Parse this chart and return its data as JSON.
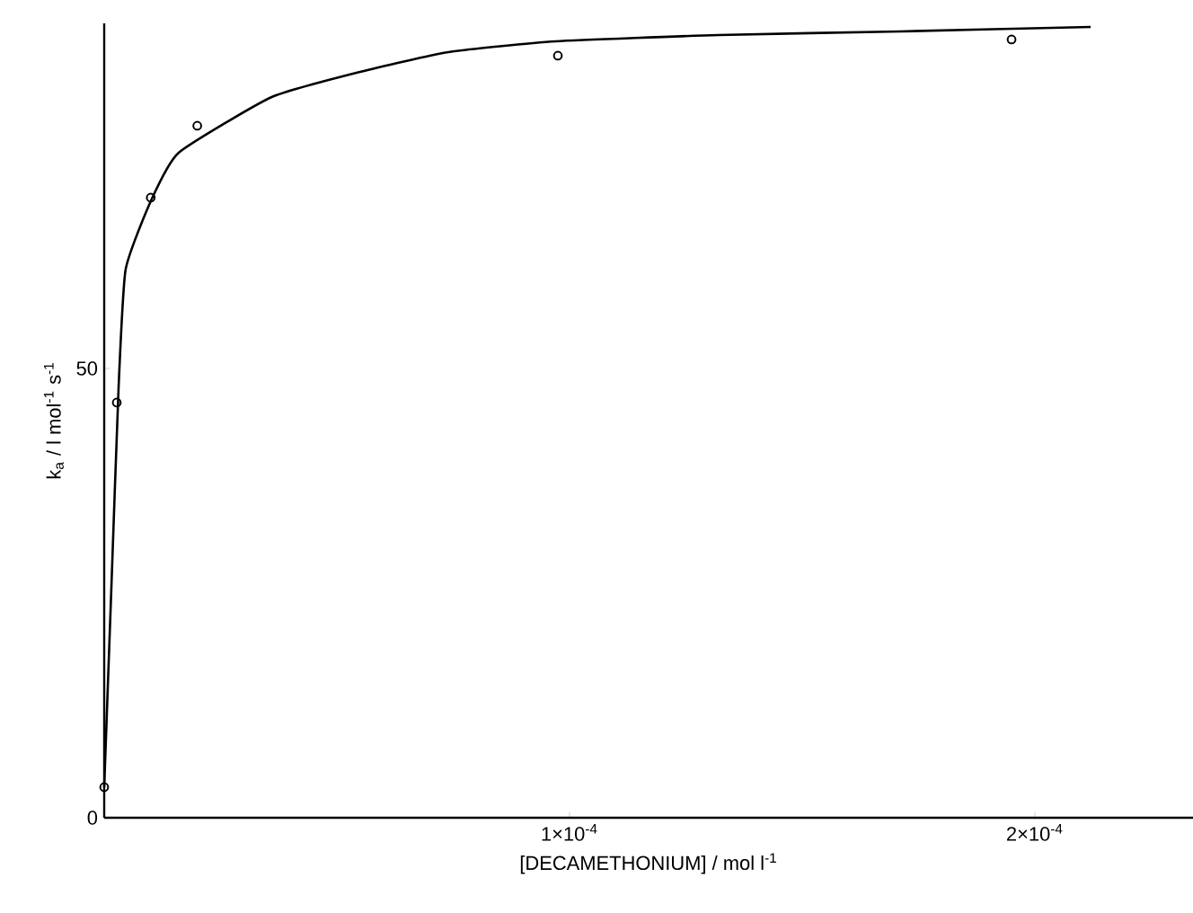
{
  "chart_data": {
    "type": "scatter",
    "xlabel": "[DECAMETHONIUM] / mol l$^{-1}$",
    "ylabel": "k$_{a}$ / l mol$^{-1}$ s$^{-1}$",
    "xlim": [
      0,
      0.000234
    ],
    "ylim": [
      0,
      88.4
    ],
    "xticks": [
      {
        "value": 0,
        "label": null
      },
      {
        "value": 0.0001,
        "label": "1×10$^{-4}$"
      },
      {
        "value": 0.0002,
        "label": "2×10$^{-4}$"
      }
    ],
    "yticks": [
      0,
      50
    ],
    "grid": false,
    "marker": "circle",
    "series": [
      {
        "type": "line",
        "color": "#000000",
        "marker": "none",
        "line_style": "solid",
        "x": [
          0,
          1.5e-06,
          3.1e-06,
          4.6e-06,
          1e-05,
          1.6e-05,
          3.6e-05,
          5.5e-05,
          7.4e-05,
          9.7e-05,
          0.000132,
          0.000171,
          0.000212
        ],
        "values": [
          3.4,
          25,
          48,
          61,
          68.6,
          74,
          80.2,
          83,
          85.2,
          86.4,
          87.1,
          87.5,
          88
        ]
      },
      {
        "color": "#000000",
        "x": [
          0,
          2.7e-06,
          1e-05,
          2e-05,
          9.75e-05,
          0.000195
        ],
        "values": [
          3.4,
          46.2,
          69,
          77,
          84.8,
          86.6
        ]
      }
    ]
  }
}
